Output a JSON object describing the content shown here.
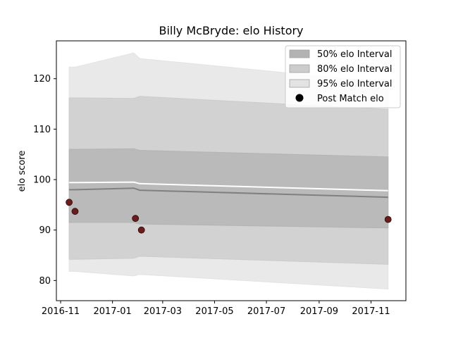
{
  "chart_data": {
    "type": "area",
    "title": "Billy McBryde: elo History",
    "xlabel": "",
    "ylabel": "elo score",
    "x_ticks": [
      "2016-11",
      "2017-01",
      "2017-03",
      "2017-05",
      "2017-07",
      "2017-09",
      "2017-11"
    ],
    "y_ticks": [
      80,
      90,
      100,
      110,
      120
    ],
    "xlim": [
      "2016-10-27",
      "2017-12-12"
    ],
    "ylim": [
      76,
      127.5
    ],
    "legend_position": "top-right",
    "legend": [
      {
        "label": "50% elo Interval",
        "kind": "patch",
        "color": "#b3b3b3"
      },
      {
        "label": "80% elo Interval",
        "kind": "patch",
        "color": "#cccccc"
      },
      {
        "label": "95% elo Interval",
        "kind": "patch",
        "color": "#e3e3e3"
      },
      {
        "label": "Post Match elo",
        "kind": "marker",
        "color": "#000000"
      }
    ],
    "band_dates": [
      "2016-11-11",
      "2016-11-18",
      "2017-01-26",
      "2017-02-02",
      "2017-11-21"
    ],
    "bands": {
      "ci95": {
        "lower": [
          81.8,
          81.8,
          80.9,
          81.2,
          78.3
        ],
        "upper": [
          122.3,
          122.3,
          125.1,
          124.0,
          119.2
        ]
      },
      "ci80": {
        "lower": [
          84.2,
          84.2,
          84.4,
          84.8,
          83.2
        ],
        "upper": [
          116.2,
          116.2,
          116.1,
          116.5,
          113.9
        ]
      },
      "ci50": {
        "lower": [
          91.5,
          91.5,
          91.5,
          91.2,
          90.4
        ],
        "upper": [
          106.0,
          106.0,
          106.1,
          105.8,
          104.5
        ]
      }
    },
    "mean_line": {
      "color": "#808080",
      "values": [
        98.0,
        98.0,
        98.3,
        97.9,
        96.5
      ]
    },
    "white_line": {
      "color": "#ffffff",
      "values": [
        99.4,
        99.4,
        99.5,
        99.2,
        97.8
      ]
    },
    "points": {
      "name": "Post Match elo",
      "color": "#6b1d1d",
      "x": [
        "2016-11-11",
        "2016-11-18",
        "2017-01-28",
        "2017-02-04",
        "2017-11-21"
      ],
      "y": [
        95.5,
        93.7,
        92.3,
        90.0,
        92.1
      ]
    }
  }
}
